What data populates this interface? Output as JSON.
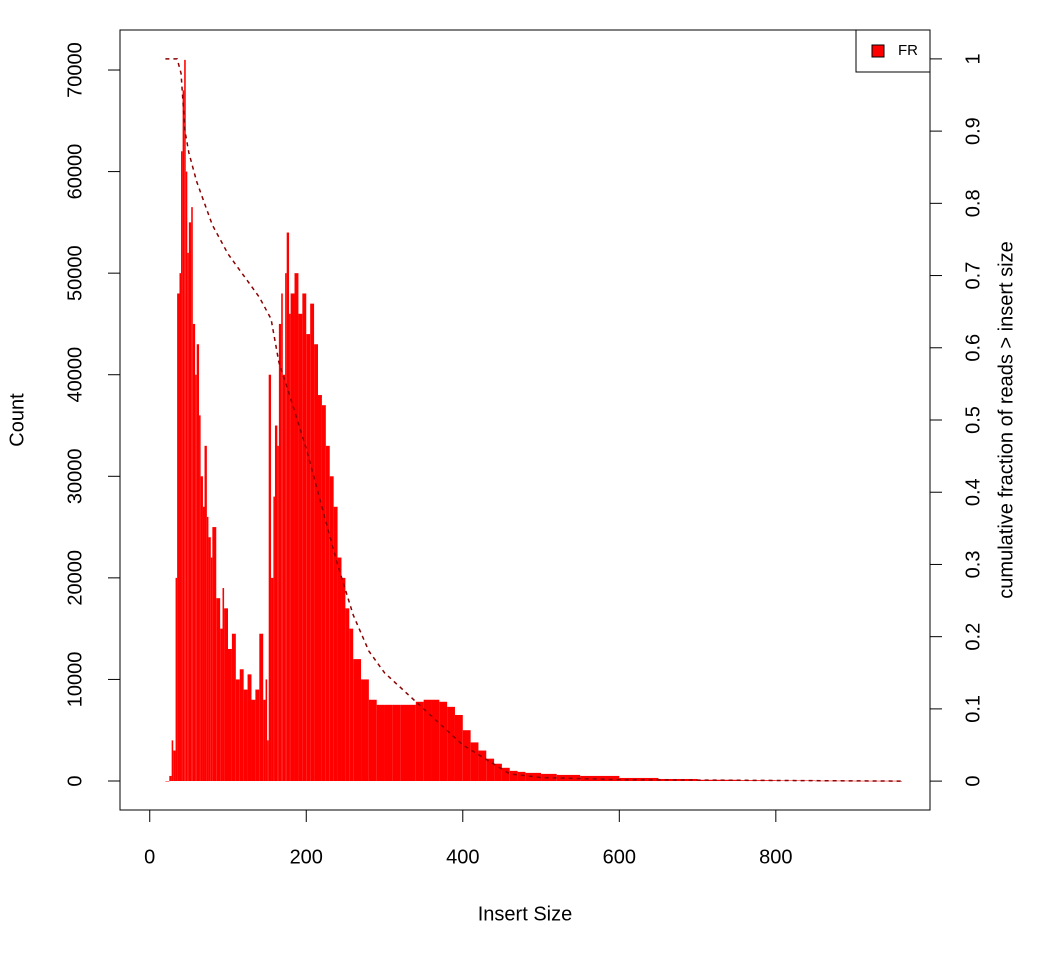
{
  "chart_data": {
    "type": "bar",
    "xlabel": "Insert Size",
    "ylabel": "Count",
    "y2label": "cumulative fraction of reads > insert size",
    "legend": "topright",
    "x": [
      20,
      25,
      28,
      30,
      33,
      35,
      38,
      40,
      42,
      44,
      46,
      48,
      50,
      53,
      55,
      58,
      60,
      63,
      65,
      68,
      70,
      73,
      75,
      78,
      80,
      85,
      90,
      93,
      95,
      100,
      105,
      110,
      115,
      120,
      125,
      130,
      135,
      140,
      145,
      148,
      150,
      152,
      155,
      158,
      160,
      163,
      165,
      168,
      170,
      173,
      175,
      178,
      180,
      185,
      190,
      195,
      200,
      205,
      210,
      215,
      220,
      225,
      230,
      235,
      240,
      245,
      250,
      255,
      260,
      270,
      280,
      290,
      300,
      310,
      320,
      330,
      340,
      350,
      360,
      370,
      380,
      390,
      400,
      410,
      420,
      430,
      440,
      450,
      460,
      470,
      480,
      500,
      520,
      550,
      600,
      650,
      700,
      750,
      800,
      850,
      900,
      960
    ],
    "series": [
      {
        "name": "FR",
        "color": "#ff0000",
        "values": [
          0,
          500,
          4000,
          3000,
          20000,
          48000,
          50000,
          62000,
          68000,
          71000,
          60000,
          52000,
          55000,
          56500,
          45000,
          40000,
          43000,
          36000,
          30000,
          27000,
          33000,
          26000,
          24000,
          22000,
          25000,
          18000,
          15000,
          19000,
          17000,
          13000,
          14500,
          10000,
          11000,
          9000,
          10500,
          8000,
          9000,
          14500,
          8000,
          10000,
          4000,
          40000,
          20000,
          28000,
          35000,
          33000,
          45000,
          48000,
          40000,
          50000,
          54000,
          46000,
          48000,
          50000,
          46000,
          48000,
          44000,
          47000,
          43000,
          38000,
          37000,
          33000,
          30000,
          27000,
          22000,
          20000,
          17000,
          15000,
          12000,
          10000,
          8000,
          7500,
          7500,
          7500,
          7500,
          7500,
          7800,
          8000,
          8000,
          7800,
          7300,
          6500,
          5000,
          3800,
          3000,
          2200,
          1700,
          1300,
          1000,
          900,
          800,
          700,
          600,
          500,
          300,
          200,
          120,
          80,
          50,
          30,
          20,
          0
        ]
      }
    ],
    "cumulative": {
      "color": "#8b0000",
      "axis": "y2",
      "x": [
        20,
        35,
        40,
        45,
        50,
        60,
        80,
        100,
        120,
        140,
        155,
        165,
        180,
        200,
        220,
        240,
        260,
        280,
        300,
        330,
        360,
        400,
        430,
        460,
        500,
        600,
        960
      ],
      "values": [
        1,
        1,
        0.98,
        0.9,
        0.87,
        0.83,
        0.77,
        0.73,
        0.7,
        0.67,
        0.64,
        0.58,
        0.53,
        0.46,
        0.38,
        0.3,
        0.23,
        0.18,
        0.15,
        0.12,
        0.09,
        0.05,
        0.03,
        0.01,
        0.005,
        0.002,
        0
      ]
    },
    "xlim": [
      -38,
      997
    ],
    "xticks": [
      0,
      200,
      400,
      600,
      800
    ],
    "ylim": [
      -2855,
      73940
    ],
    "yticks": [
      0,
      10000,
      20000,
      30000,
      40000,
      50000,
      60000,
      70000
    ],
    "y2lim": [
      -0.04,
      1.04
    ],
    "y2ticks": [
      0,
      0.1,
      0.2,
      0.3,
      0.4,
      0.5,
      0.6,
      0.7,
      0.8,
      0.9,
      1
    ]
  }
}
